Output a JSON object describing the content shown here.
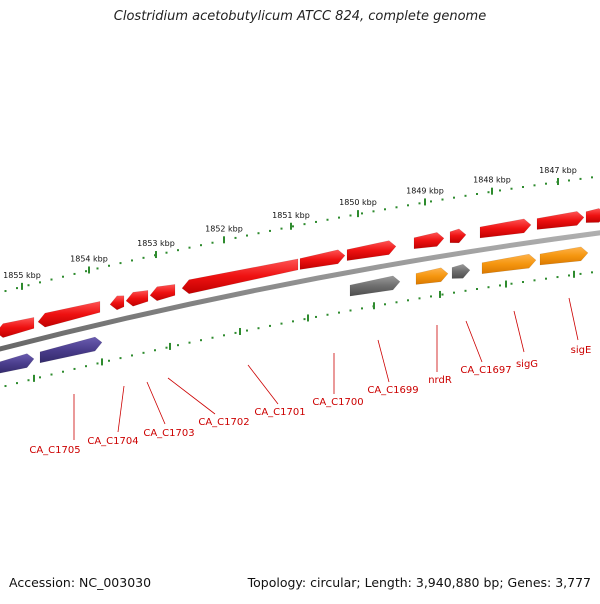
{
  "title": "Clostridium acetobutylicum ATCC 824, complete genome",
  "footer": {
    "accession": "Accession: NC_003030",
    "summary": "Topology: circular; Length: 3,940,880 bp; Genes: 3,777"
  },
  "scale_labels": [
    "1855 kbp",
    "1854 kbp",
    "1853 kbp",
    "1852 kbp",
    "1851 kbp",
    "1850 kbp",
    "1849 kbp",
    "1848 kbp",
    "1847 kbp"
  ],
  "gene_labels": [
    "CA_C1705",
    "CA_C1704",
    "CA_C1703",
    "CA_C1702",
    "CA_C1701",
    "CA_C1700",
    "CA_C1699",
    "nrdR",
    "CA_C1697",
    "sigG",
    "sigE"
  ],
  "colors": {
    "backbone": "#8a8a8a",
    "tick": "#2e8b2e",
    "gene_red": "#ee1111",
    "gene_orange": "#f5960f",
    "gene_gray": "#6e6e6e",
    "gene_purple": "#4a3d8c",
    "label_red": "#cc0000"
  }
}
